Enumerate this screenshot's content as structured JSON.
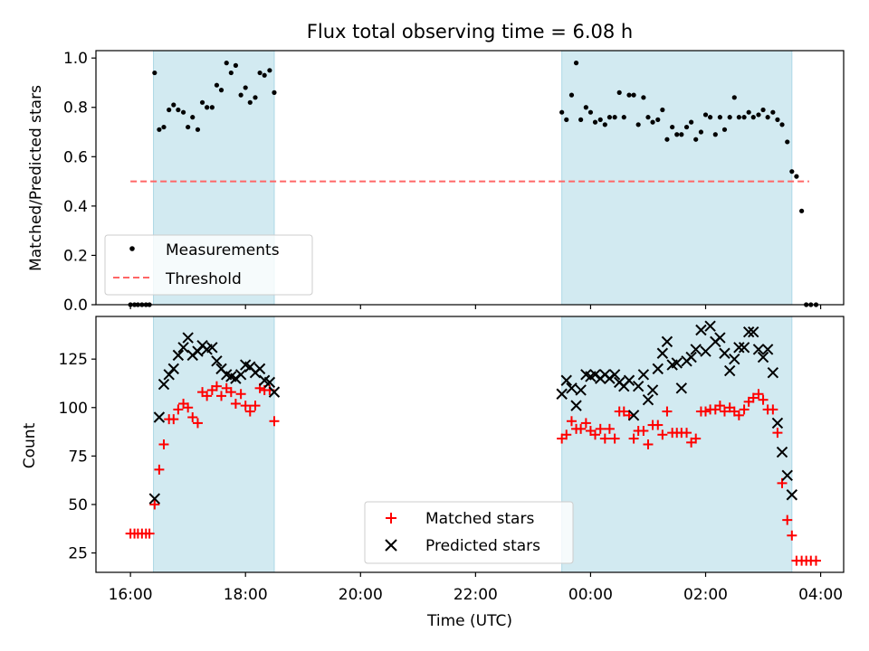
{
  "title": "Flux total observing time = 6.08 h",
  "colors": {
    "shade": "#add8e6",
    "threshold": "#ff6666",
    "matched": "#ff0000",
    "predicted": "#000000",
    "measurements": "#000000"
  },
  "x_ticks": [
    "16:00",
    "18:00",
    "20:00",
    "22:00",
    "00:00",
    "02:00",
    "04:00"
  ],
  "chart_data": [
    {
      "type": "scatter",
      "ylabel": "Matched/Predicted stars",
      "xlim": [
        -0.6,
        12.4
      ],
      "ylim": [
        0,
        1.03
      ],
      "y_ticks": [
        "0.0",
        "0.2",
        "0.4",
        "0.6",
        "0.8",
        "1.0"
      ],
      "shaded_intervals": [
        [
          0.4,
          2.5
        ],
        [
          7.5,
          11.5
        ]
      ],
      "legend": {
        "placement": "lower-left",
        "entries": [
          "Measurements",
          "Threshold"
        ]
      },
      "threshold": {
        "name": "Threshold",
        "y": 0.5,
        "x_range": [
          0,
          11.8
        ]
      },
      "series": [
        {
          "name": "Measurements",
          "points": [
            [
              0.0,
              0.0
            ],
            [
              0.07,
              0.0
            ],
            [
              0.13,
              0.0
            ],
            [
              0.2,
              0.0
            ],
            [
              0.27,
              0.0
            ],
            [
              0.33,
              0.0
            ],
            [
              0.42,
              0.94
            ],
            [
              0.5,
              0.71
            ],
            [
              0.58,
              0.72
            ],
            [
              0.67,
              0.79
            ],
            [
              0.75,
              0.81
            ],
            [
              0.83,
              0.79
            ],
            [
              0.92,
              0.78
            ],
            [
              1.0,
              0.72
            ],
            [
              1.08,
              0.76
            ],
            [
              1.17,
              0.71
            ],
            [
              1.25,
              0.82
            ],
            [
              1.33,
              0.8
            ],
            [
              1.42,
              0.8
            ],
            [
              1.5,
              0.89
            ],
            [
              1.58,
              0.87
            ],
            [
              1.67,
              0.98
            ],
            [
              1.75,
              0.94
            ],
            [
              1.83,
              0.97
            ],
            [
              1.92,
              0.85
            ],
            [
              2.0,
              0.88
            ],
            [
              2.08,
              0.82
            ],
            [
              2.17,
              0.84
            ],
            [
              2.25,
              0.94
            ],
            [
              2.33,
              0.93
            ],
            [
              2.42,
              0.95
            ],
            [
              2.5,
              0.86
            ],
            [
              7.5,
              0.78
            ],
            [
              7.58,
              0.75
            ],
            [
              7.67,
              0.85
            ],
            [
              7.75,
              0.98
            ],
            [
              7.83,
              0.75
            ],
            [
              7.92,
              0.8
            ],
            [
              8.0,
              0.78
            ],
            [
              8.08,
              0.74
            ],
            [
              8.17,
              0.75
            ],
            [
              8.25,
              0.73
            ],
            [
              8.33,
              0.76
            ],
            [
              8.42,
              0.76
            ],
            [
              8.5,
              0.86
            ],
            [
              8.58,
              0.76
            ],
            [
              8.67,
              0.85
            ],
            [
              8.75,
              0.85
            ],
            [
              8.83,
              0.73
            ],
            [
              8.92,
              0.84
            ],
            [
              9.0,
              0.76
            ],
            [
              9.08,
              0.74
            ],
            [
              9.17,
              0.75
            ],
            [
              9.25,
              0.79
            ],
            [
              9.33,
              0.67
            ],
            [
              9.42,
              0.72
            ],
            [
              9.5,
              0.69
            ],
            [
              9.58,
              0.69
            ],
            [
              9.67,
              0.72
            ],
            [
              9.75,
              0.74
            ],
            [
              9.83,
              0.67
            ],
            [
              9.92,
              0.7
            ],
            [
              10.0,
              0.77
            ],
            [
              10.08,
              0.76
            ],
            [
              10.17,
              0.69
            ],
            [
              10.25,
              0.76
            ],
            [
              10.33,
              0.71
            ],
            [
              10.42,
              0.76
            ],
            [
              10.5,
              0.84
            ],
            [
              10.58,
              0.76
            ],
            [
              10.67,
              0.76
            ],
            [
              10.75,
              0.78
            ],
            [
              10.83,
              0.76
            ],
            [
              10.92,
              0.77
            ],
            [
              11.0,
              0.79
            ],
            [
              11.08,
              0.76
            ],
            [
              11.17,
              0.78
            ],
            [
              11.25,
              0.75
            ],
            [
              11.33,
              0.73
            ],
            [
              11.42,
              0.66
            ],
            [
              11.5,
              0.54
            ],
            [
              11.58,
              0.52
            ],
            [
              11.67,
              0.38
            ],
            [
              11.75,
              0.0
            ],
            [
              11.83,
              0.0
            ],
            [
              11.92,
              0.0
            ]
          ]
        }
      ]
    },
    {
      "type": "scatter",
      "xlabel": "Time (UTC)",
      "ylabel": "Count",
      "xlim": [
        -0.6,
        12.4
      ],
      "ylim": [
        15,
        147
      ],
      "y_ticks": [
        "25",
        "50",
        "75",
        "100",
        "125"
      ],
      "shaded_intervals": [
        [
          0.4,
          2.5
        ],
        [
          7.5,
          11.5
        ]
      ],
      "legend": {
        "placement": "lower-center",
        "entries": [
          "Matched stars",
          "Predicted stars"
        ]
      },
      "series": [
        {
          "name": "Matched stars",
          "marker": "+",
          "points": [
            [
              0.0,
              35
            ],
            [
              0.07,
              35
            ],
            [
              0.13,
              35
            ],
            [
              0.2,
              35
            ],
            [
              0.27,
              35
            ],
            [
              0.33,
              35
            ],
            [
              0.42,
              50
            ],
            [
              0.5,
              68
            ],
            [
              0.58,
              81
            ],
            [
              0.67,
              94
            ],
            [
              0.75,
              94
            ],
            [
              0.83,
              99
            ],
            [
              0.92,
              102
            ],
            [
              1.0,
              100
            ],
            [
              1.08,
              95
            ],
            [
              1.17,
              92
            ],
            [
              1.25,
              108
            ],
            [
              1.33,
              106
            ],
            [
              1.42,
              109
            ],
            [
              1.5,
              111
            ],
            [
              1.58,
              106
            ],
            [
              1.67,
              110
            ],
            [
              1.75,
              108
            ],
            [
              1.83,
              102
            ],
            [
              1.92,
              107
            ],
            [
              2.0,
              101
            ],
            [
              2.08,
              98
            ],
            [
              2.17,
              101
            ],
            [
              2.25,
              110
            ],
            [
              2.33,
              109
            ],
            [
              2.42,
              109
            ],
            [
              2.5,
              93
            ],
            [
              7.5,
              84
            ],
            [
              7.58,
              86
            ],
            [
              7.67,
              93
            ],
            [
              7.75,
              89
            ],
            [
              7.83,
              89
            ],
            [
              7.92,
              92
            ],
            [
              8.0,
              88
            ],
            [
              8.08,
              86
            ],
            [
              8.17,
              89
            ],
            [
              8.25,
              84
            ],
            [
              8.33,
              89
            ],
            [
              8.42,
              84
            ],
            [
              8.5,
              98
            ],
            [
              8.58,
              98
            ],
            [
              8.67,
              96
            ],
            [
              8.75,
              84
            ],
            [
              8.83,
              88
            ],
            [
              8.92,
              88
            ],
            [
              9.0,
              81
            ],
            [
              9.08,
              91
            ],
            [
              9.17,
              91
            ],
            [
              9.25,
              86
            ],
            [
              9.33,
              98
            ],
            [
              9.42,
              87
            ],
            [
              9.5,
              87
            ],
            [
              9.58,
              87
            ],
            [
              9.67,
              87
            ],
            [
              9.75,
              82
            ],
            [
              9.83,
              84
            ],
            [
              9.92,
              98
            ],
            [
              10.0,
              98
            ],
            [
              10.08,
              99
            ],
            [
              10.17,
              99
            ],
            [
              10.25,
              101
            ],
            [
              10.33,
              98
            ],
            [
              10.42,
              100
            ],
            [
              10.5,
              98
            ],
            [
              10.58,
              96
            ],
            [
              10.67,
              99
            ],
            [
              10.75,
              103
            ],
            [
              10.83,
              105
            ],
            [
              10.92,
              107
            ],
            [
              11.0,
              104
            ],
            [
              11.08,
              99
            ],
            [
              11.17,
              99
            ],
            [
              11.25,
              87
            ],
            [
              11.33,
              61
            ],
            [
              11.42,
              42
            ],
            [
              11.5,
              34
            ],
            [
              11.58,
              21
            ],
            [
              11.67,
              21
            ],
            [
              11.75,
              21
            ],
            [
              11.83,
              21
            ],
            [
              11.92,
              21
            ]
          ]
        },
        {
          "name": "Predicted stars",
          "marker": "x",
          "points": [
            [
              0.42,
              53
            ],
            [
              0.5,
              95
            ],
            [
              0.58,
              112
            ],
            [
              0.67,
              117
            ],
            [
              0.75,
              120
            ],
            [
              0.83,
              127
            ],
            [
              0.92,
              131
            ],
            [
              1.0,
              136
            ],
            [
              1.08,
              127
            ],
            [
              1.17,
              129
            ],
            [
              1.25,
              132
            ],
            [
              1.33,
              130
            ],
            [
              1.42,
              131
            ],
            [
              1.5,
              124
            ],
            [
              1.58,
              120
            ],
            [
              1.67,
              117
            ],
            [
              1.75,
              116
            ],
            [
              1.83,
              115
            ],
            [
              1.92,
              117
            ],
            [
              2.0,
              122
            ],
            [
              2.08,
              121
            ],
            [
              2.17,
              118
            ],
            [
              2.25,
              120
            ],
            [
              2.33,
              114
            ],
            [
              2.42,
              113
            ],
            [
              2.5,
              108
            ],
            [
              7.5,
              107
            ],
            [
              7.58,
              114
            ],
            [
              7.67,
              110
            ],
            [
              7.75,
              101
            ],
            [
              7.83,
              109
            ],
            [
              7.92,
              117
            ],
            [
              8.0,
              116
            ],
            [
              8.08,
              117
            ],
            [
              8.17,
              115
            ],
            [
              8.25,
              117
            ],
            [
              8.33,
              115
            ],
            [
              8.42,
              117
            ],
            [
              8.5,
              113
            ],
            [
              8.58,
              111
            ],
            [
              8.67,
              114
            ],
            [
              8.75,
              96
            ],
            [
              8.83,
              111
            ],
            [
              8.92,
              117
            ],
            [
              9.0,
              104
            ],
            [
              9.08,
              109
            ],
            [
              9.17,
              120
            ],
            [
              9.25,
              128
            ],
            [
              9.33,
              134
            ],
            [
              9.42,
              122
            ],
            [
              9.5,
              123
            ],
            [
              9.58,
              110
            ],
            [
              9.67,
              124
            ],
            [
              9.75,
              126
            ],
            [
              9.83,
              130
            ],
            [
              9.92,
              140
            ],
            [
              10.0,
              129
            ],
            [
              10.08,
              142
            ],
            [
              10.17,
              134
            ],
            [
              10.25,
              136
            ],
            [
              10.33,
              128
            ],
            [
              10.42,
              119
            ],
            [
              10.5,
              125
            ],
            [
              10.58,
              131
            ],
            [
              10.67,
              131
            ],
            [
              10.75,
              139
            ],
            [
              10.83,
              139
            ],
            [
              10.92,
              130
            ],
            [
              11.0,
              126
            ],
            [
              11.08,
              130
            ],
            [
              11.17,
              118
            ],
            [
              11.25,
              92
            ],
            [
              11.33,
              77
            ],
            [
              11.42,
              65
            ],
            [
              11.5,
              55
            ]
          ]
        }
      ]
    }
  ]
}
